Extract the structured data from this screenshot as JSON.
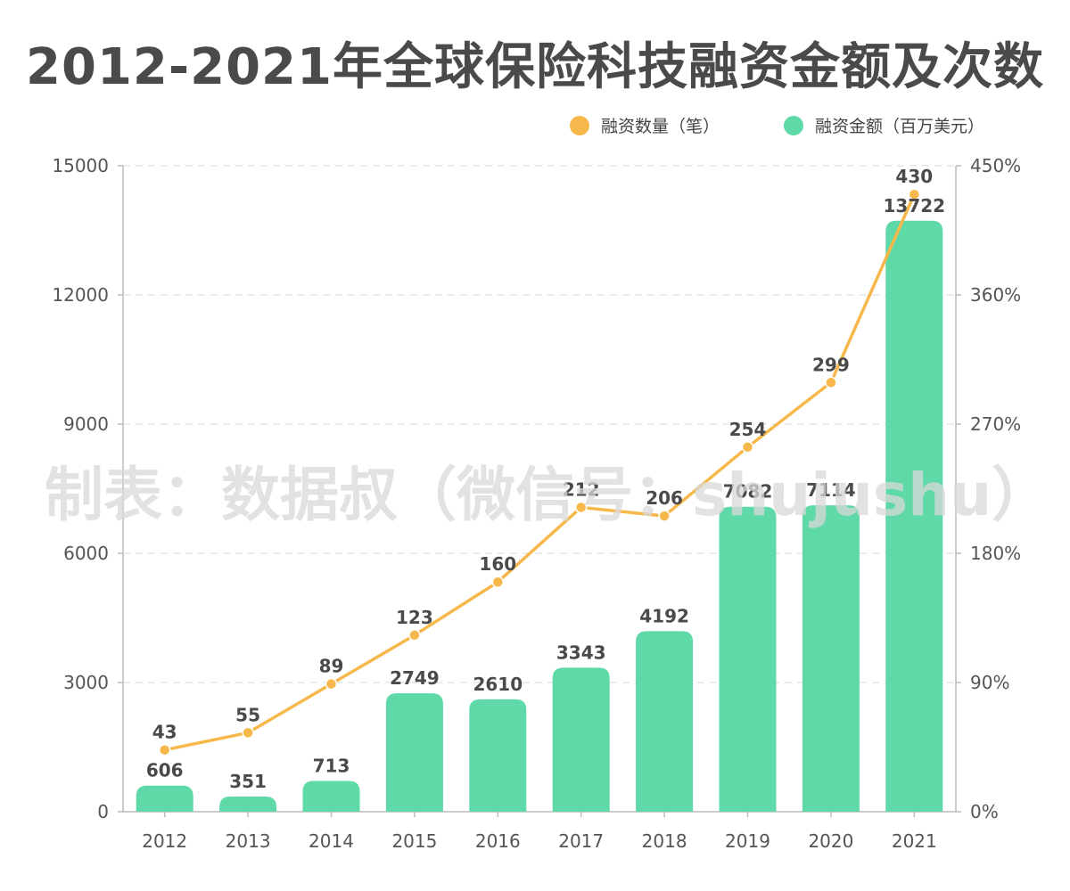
{
  "chart_data": {
    "type": "bar",
    "title": "2012-2021年全球保险科技融资金额及次数",
    "categories": [
      "2012",
      "2013",
      "2014",
      "2015",
      "2016",
      "2017",
      "2018",
      "2019",
      "2020",
      "2021"
    ],
    "series": [
      {
        "name": "融资金额（百万美元）",
        "type": "bar",
        "axis": "left",
        "color": "#5fd9a8",
        "values": [
          606,
          351,
          713,
          2749,
          2610,
          3343,
          4192,
          7082,
          7114,
          13722
        ]
      },
      {
        "name": "融资数量（笔）",
        "type": "line",
        "axis": "right",
        "color": "#f7b84b",
        "values": [
          43,
          55,
          89,
          123,
          160,
          212,
          206,
          254,
          299,
          430
        ]
      }
    ],
    "y_left": {
      "min": 0,
      "max": 15000,
      "ticks": [
        "0",
        "3000",
        "6000",
        "9000",
        "12000",
        "15000"
      ]
    },
    "y_right": {
      "min": 0,
      "max": 450,
      "ticks": [
        "0%",
        "90%",
        "180%",
        "270%",
        "360%",
        "450%"
      ]
    },
    "grid": true,
    "legend_position": "top-right",
    "watermark": "制表：数据叔（微信号：shujushu）"
  }
}
